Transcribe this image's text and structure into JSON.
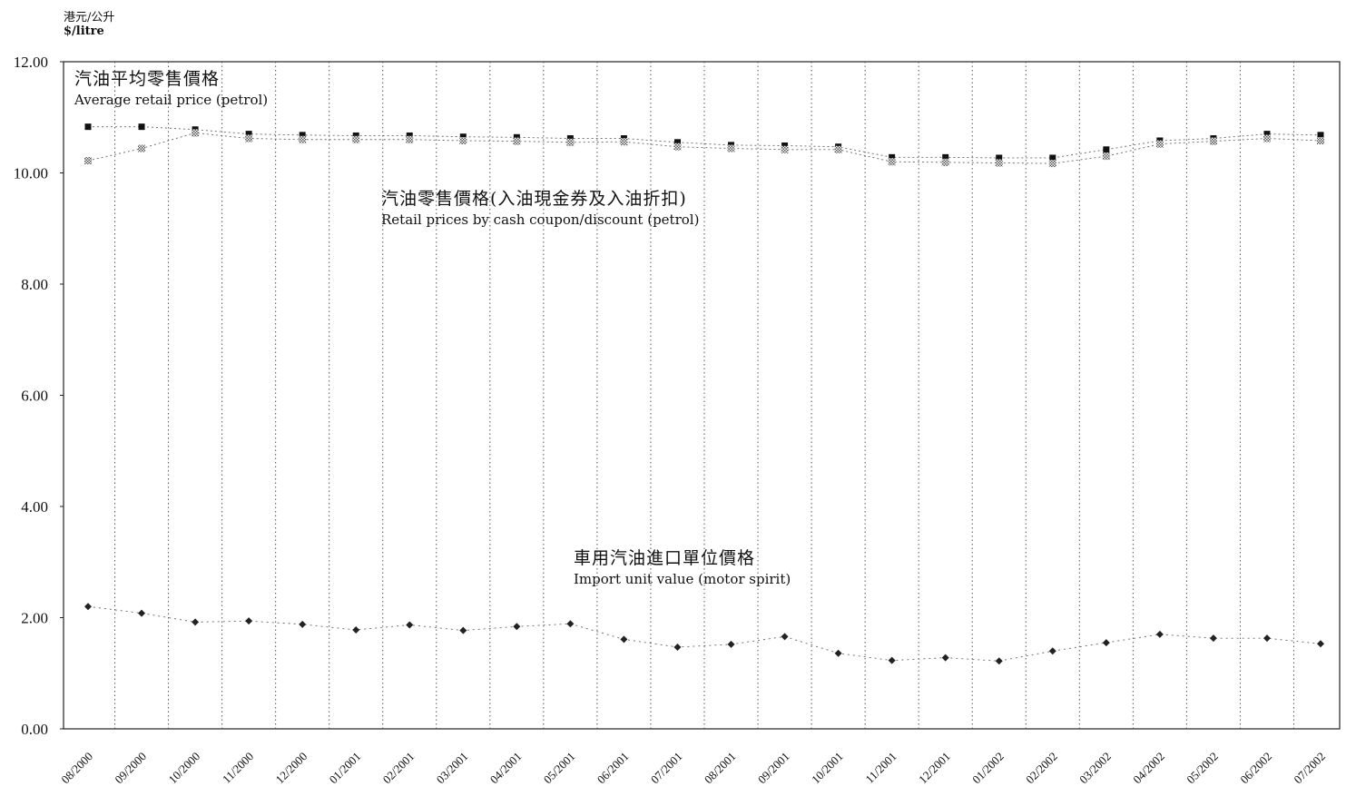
{
  "chart_data": {
    "type": "line",
    "title": "",
    "xlabel": "",
    "ylabel": {
      "zh": "港元/公升",
      "en": "$/litre"
    },
    "ylim": [
      0,
      12
    ],
    "yticks": [
      "0.00",
      "2.00",
      "4.00",
      "6.00",
      "8.00",
      "10.00",
      "12.00"
    ],
    "grid": "vertical dotted",
    "categories": [
      "08/2000",
      "09/2000",
      "10/2000",
      "11/2000",
      "12/2000",
      "01/2001",
      "02/2001",
      "03/2001",
      "04/2001",
      "05/2001",
      "06/2001",
      "07/2001",
      "08/2001",
      "09/2001",
      "10/2001",
      "11/2001",
      "12/2001",
      "01/2002",
      "02/2002",
      "03/2002",
      "04/2002",
      "05/2002",
      "06/2002",
      "07/2002"
    ],
    "series": [
      {
        "name": {
          "zh": "汽油平均零售價格",
          "en": "Average retail price (petrol)"
        },
        "marker": "square",
        "color": "#111111",
        "values": [
          10.83,
          10.83,
          10.78,
          10.7,
          10.68,
          10.67,
          10.67,
          10.65,
          10.64,
          10.62,
          10.62,
          10.55,
          10.5,
          10.49,
          10.47,
          10.28,
          10.28,
          10.27,
          10.27,
          10.42,
          10.58,
          10.62,
          10.7,
          10.68
        ]
      },
      {
        "name": {
          "zh": "汽油零售價格(入油現金券及入油折扣)",
          "en": "Retail prices by cash coupon/discount (petrol)"
        },
        "marker": "square-hatched",
        "color": "#777777",
        "values": [
          10.22,
          10.44,
          10.72,
          10.62,
          10.6,
          10.6,
          10.6,
          10.58,
          10.57,
          10.55,
          10.56,
          10.47,
          10.44,
          10.42,
          10.42,
          10.2,
          10.19,
          10.18,
          10.17,
          10.3,
          10.52,
          10.57,
          10.62,
          10.58
        ]
      },
      {
        "name": {
          "zh": "車用汽油進口單位價格",
          "en": "Import unit value (motor spirit)"
        },
        "marker": "diamond",
        "color": "#222222",
        "values": [
          2.2,
          2.08,
          1.92,
          1.94,
          1.88,
          1.78,
          1.87,
          1.77,
          1.84,
          1.89,
          1.61,
          1.47,
          1.52,
          1.66,
          1.36,
          1.23,
          1.28,
          1.22,
          1.4,
          1.55,
          1.7,
          1.63,
          1.63,
          1.53
        ]
      }
    ]
  }
}
